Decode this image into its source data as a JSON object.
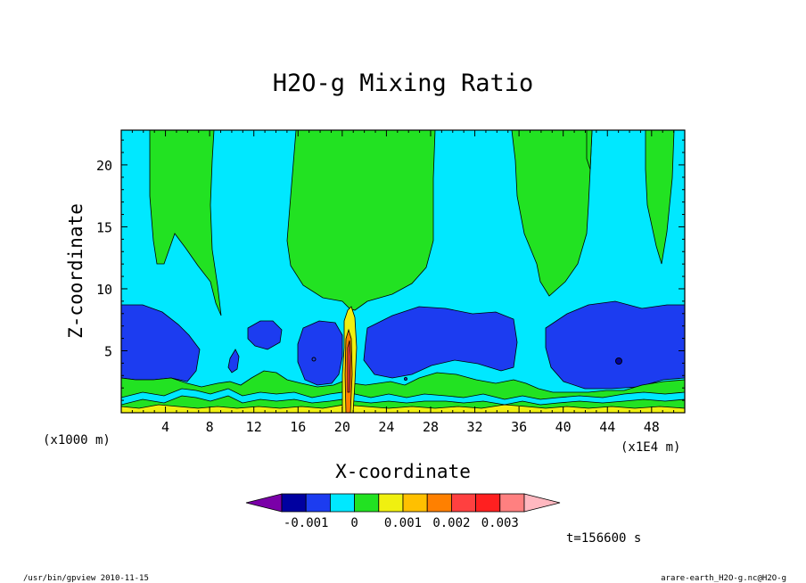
{
  "chart_data": {
    "type": "heatmap",
    "title": "H2O-g Mixing Ratio",
    "xlabel": "X-coordinate",
    "ylabel": "Z-coordinate",
    "x_unit_label": "(x1E4 m)",
    "y_unit_label": "(x1000 m)",
    "xlim": [
      0,
      51
    ],
    "ylim": [
      0,
      22.8
    ],
    "x_ticks": [
      4,
      8,
      12,
      16,
      20,
      24,
      28,
      32,
      36,
      40,
      44,
      48
    ],
    "y_ticks": [
      5,
      10,
      15,
      20
    ],
    "colorbar": {
      "labels": [
        "-0.001",
        "0",
        "0.001",
        "0.002",
        "0.003"
      ],
      "label_levels": [
        -0.001,
        0,
        0.001,
        0.002,
        0.003
      ],
      "levels": [
        -0.002,
        -0.0015,
        -0.001,
        -0.0005,
        0,
        0.0005,
        0.001,
        0.0015,
        0.002,
        0.0025,
        0.003,
        0.0035
      ],
      "colors": [
        "#7a00a8",
        "#0000a0",
        "#1c3cf0",
        "#00e8ff",
        "#22e222",
        "#f0f010",
        "#ffc000",
        "#ff8000",
        "#ff4040",
        "#ff2020",
        "#ff8080",
        "#ffb8c0"
      ]
    },
    "regions": [
      {
        "name": "upper-green-plume-1",
        "level": 0.0005,
        "color": "#22e222"
      },
      {
        "name": "upper-green-plume-2",
        "level": 0.0005,
        "color": "#22e222"
      },
      {
        "name": "upper-green-plume-3",
        "level": 0.0005,
        "color": "#22e222"
      },
      {
        "name": "upper-green-plume-4",
        "level": 0.0005,
        "color": "#22e222"
      },
      {
        "name": "lower-blue-band",
        "level": -0.0005,
        "color": "#1c3cf0"
      },
      {
        "name": "surface-green-layer",
        "level": 0.0005,
        "color": "#22e222"
      },
      {
        "name": "surface-yellow-layer",
        "level": 0.001,
        "color": "#f0f010"
      },
      {
        "name": "central-moist-column",
        "level": 0.002,
        "color": "#ff8000"
      }
    ],
    "annotation": "t=156600 s"
  },
  "footer": {
    "left": "/usr/bin/gpview  2010-11-15",
    "right": "arare-earth_H2O-g.nc@H2O-g"
  }
}
